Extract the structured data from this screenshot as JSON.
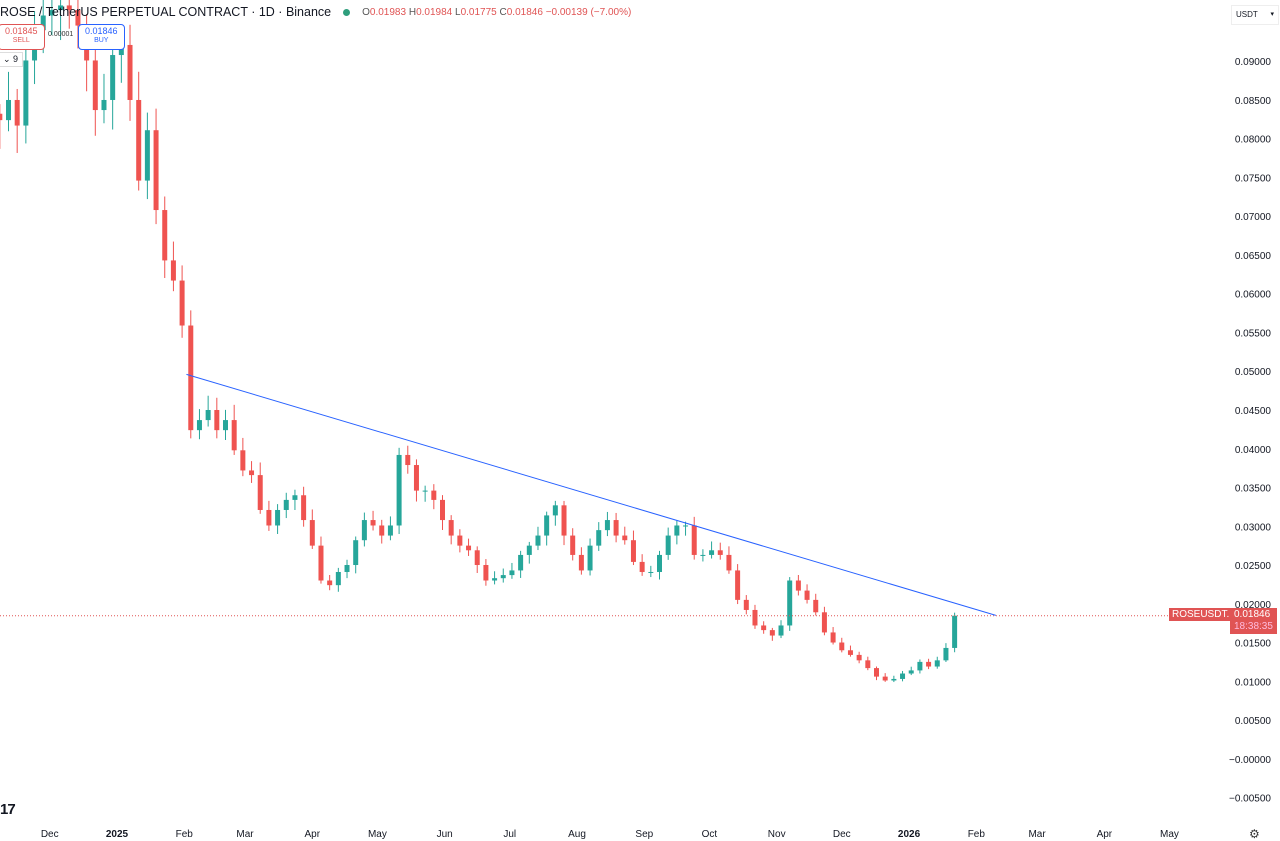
{
  "header": {
    "title": "ROSE / TetherUS PERPETUAL CONTRACT · 1D · Binance",
    "open_label": "O",
    "open": "0.01983",
    "high_label": "H",
    "high": "0.01984",
    "low_label": "L",
    "low": "0.01775",
    "close_label": "C",
    "close": "0.01846",
    "change": "−0.00139 (−7.00%)",
    "status_color": "#2e9e7c"
  },
  "trade": {
    "sell_price": "0.01845",
    "sell_label": "SELL",
    "spread": "0.00001",
    "buy_price": "0.01846",
    "buy_label": "BUY"
  },
  "indicator_count": "9",
  "currency_selector": "USDT",
  "last_price": {
    "symbol": "ROSEUSDT.P",
    "price": "0.01846",
    "countdown": "18:38:35"
  },
  "logo": "17",
  "colors": {
    "up": "#26a69a",
    "down": "#ef5350",
    "trendline": "#2962ff",
    "price_label": "#e05454"
  },
  "chart_data": {
    "type": "candlestick",
    "interval_days": 4,
    "start_date": "2024-11-08",
    "closes": [
      0.0824,
      0.085,
      0.0817,
      0.0901,
      0.094,
      0.0959,
      0.0966,
      0.0972,
      0.0966,
      0.0946,
      0.0901,
      0.0837,
      0.085,
      0.0908,
      0.0921,
      0.085,
      0.0746,
      0.0811,
      0.0708,
      0.0643,
      0.0617,
      0.0559,
      0.0424,
      0.0437,
      0.045,
      0.0424,
      0.0437,
      0.0398,
      0.0372,
      0.0366,
      0.0321,
      0.0301,
      0.0321,
      0.0334,
      0.034,
      0.0308,
      0.0275,
      0.023,
      0.0224,
      0.0241,
      0.025,
      0.0282,
      0.0308,
      0.0301,
      0.0288,
      0.0301,
      0.0392,
      0.0379,
      0.0346,
      0.0346,
      0.0334,
      0.0308,
      0.0288,
      0.0275,
      0.0269,
      0.025,
      0.023,
      0.0233,
      0.0237,
      0.0243,
      0.0263,
      0.0275,
      0.0288,
      0.0314,
      0.0327,
      0.0288,
      0.0263,
      0.0243,
      0.0275,
      0.0295,
      0.0308,
      0.0288,
      0.0282,
      0.0254,
      0.0241,
      0.0241,
      0.0263,
      0.0288,
      0.0301,
      0.0301,
      0.0263,
      0.0263,
      0.0269,
      0.0263,
      0.0243,
      0.0205,
      0.0192,
      0.0172,
      0.0166,
      0.0159,
      0.0172,
      0.023,
      0.0217,
      0.0205,
      0.0189,
      0.0163,
      0.015,
      0.014,
      0.0134,
      0.0127,
      0.0117,
      0.0106,
      0.0101,
      0.0103,
      0.011,
      0.0114,
      0.0125,
      0.0119,
      0.0127,
      0.0143,
      0.01846
    ],
    "trendline": {
      "start": {
        "date": "2025-02-02",
        "price": 0.0496
      },
      "end": {
        "date": "2026-02-10",
        "price": 0.0185
      }
    },
    "current_price": 0.01846,
    "ylim": [
      -0.0079,
      0.0979
    ],
    "y_ticks": [
      {
        "value": 0.09,
        "label": "0.09000"
      },
      {
        "value": 0.085,
        "label": "0.08500"
      },
      {
        "value": 0.08,
        "label": "0.08000"
      },
      {
        "value": 0.075,
        "label": "0.07500"
      },
      {
        "value": 0.07,
        "label": "0.07000"
      },
      {
        "value": 0.065,
        "label": "0.06500"
      },
      {
        "value": 0.06,
        "label": "0.06000"
      },
      {
        "value": 0.055,
        "label": "0.05500"
      },
      {
        "value": 0.05,
        "label": "0.05000"
      },
      {
        "value": 0.045,
        "label": "0.04500"
      },
      {
        "value": 0.04,
        "label": "0.04000"
      },
      {
        "value": 0.035,
        "label": "0.03500"
      },
      {
        "value": 0.03,
        "label": "0.03000"
      },
      {
        "value": 0.025,
        "label": "0.02500"
      },
      {
        "value": 0.02,
        "label": "0.02000"
      },
      {
        "value": 0.015,
        "label": "0.01500"
      },
      {
        "value": 0.01,
        "label": "0.01000"
      },
      {
        "value": 0.005,
        "label": "0.00500"
      },
      {
        "value": 0.0,
        "label": "−0.00000"
      },
      {
        "value": -0.005,
        "label": "−0.00500"
      }
    ],
    "x_ticks": [
      {
        "date": "2024-12-01",
        "label": "Dec"
      },
      {
        "date": "2025-01-01",
        "label": "2025"
      },
      {
        "date": "2025-02-01",
        "label": "Feb"
      },
      {
        "date": "2025-03-01",
        "label": "Mar"
      },
      {
        "date": "2025-04-01",
        "label": "Apr"
      },
      {
        "date": "2025-05-01",
        "label": "May"
      },
      {
        "date": "2025-06-01",
        "label": "Jun"
      },
      {
        "date": "2025-07-01",
        "label": "Jul"
      },
      {
        "date": "2025-08-01",
        "label": "Aug"
      },
      {
        "date": "2025-09-01",
        "label": "Sep"
      },
      {
        "date": "2025-10-01",
        "label": "Oct"
      },
      {
        "date": "2025-11-01",
        "label": "Nov"
      },
      {
        "date": "2025-12-01",
        "label": "Dec"
      },
      {
        "date": "2026-01-01",
        "label": "2026"
      },
      {
        "date": "2026-02-01",
        "label": "Feb"
      },
      {
        "date": "2026-03-01",
        "label": "Mar"
      },
      {
        "date": "2026-04-01",
        "label": "Apr"
      },
      {
        "date": "2026-05-01",
        "label": "May"
      }
    ]
  }
}
